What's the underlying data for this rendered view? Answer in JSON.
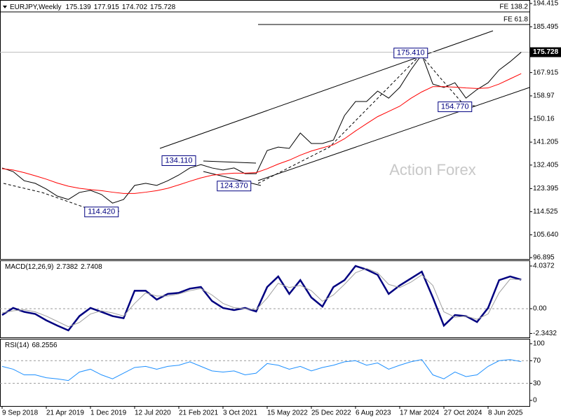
{
  "chart_data": [
    {
      "type": "line",
      "symbol": "EURJPY,Weekly",
      "header_values": [
        175.139,
        177.915,
        174.702,
        175.728
      ],
      "watermark": "Action Forex",
      "categories": [
        "9 Sep 2018",
        null,
        null,
        null,
        "21 Apr 2019",
        null,
        null,
        null,
        "1 Dec 2019",
        null,
        null,
        null,
        "12 Jul 2020",
        null,
        null,
        null,
        "21 Feb 2021",
        null,
        null,
        null,
        "3 Oct 2021",
        null,
        null,
        null,
        "15 May 2022",
        null,
        null,
        null,
        "25 Dec 2022",
        null,
        null,
        null,
        "6 Aug 2023",
        null,
        null,
        null,
        "17 Mar 2024",
        null,
        null,
        null,
        "27 Oct 2024",
        null,
        null,
        null,
        "8 Jun 2025",
        null,
        null,
        null
      ],
      "series": [
        {
          "name": "EURJPY",
          "color": "#000000",
          "values": [
            131.3,
            129.9,
            126.4,
            125.4,
            123.2,
            120.5,
            119.2,
            121.9,
            122.7,
            121.1,
            117.8,
            119.2,
            124.6,
            125.4,
            124.6,
            126.4,
            128.6,
            131.3,
            132.6,
            131.3,
            130.5,
            131.3,
            129.1,
            129.1,
            138.0,
            139.3,
            138.8,
            144.7,
            140.7,
            140.7,
            142.0,
            151.4,
            156.8,
            156.8,
            160.8,
            158.1,
            162.2,
            168.9,
            174.8,
            163.5,
            162.2,
            164.0,
            158.1,
            161.4,
            164.0,
            168.9,
            172.1,
            175.728
          ]
        },
        {
          "name": "MA",
          "color": "#ff0000",
          "values": [
            131,
            130.5,
            129.5,
            128.3,
            127,
            125.5,
            124.3,
            123.5,
            123,
            122.6,
            122,
            121.5,
            121.5,
            122,
            122.6,
            123.5,
            124.8,
            126.2,
            127.5,
            128.5,
            129,
            129.3,
            129.3,
            129.5,
            131,
            132.8,
            134.3,
            136.2,
            137.8,
            139,
            140.2,
            142.5,
            145.5,
            148.3,
            151,
            153,
            155,
            158,
            160.5,
            162.5,
            162.5,
            162.3,
            162,
            161.8,
            162,
            163.5,
            165.5,
            167.5
          ]
        }
      ],
      "annotations": [
        {
          "index": 37,
          "value": 175.41,
          "label": "175.410"
        },
        {
          "index": 41,
          "value": 154.77,
          "label": "154.770"
        },
        {
          "index": 16,
          "value": 134.11,
          "label": "134.110"
        },
        {
          "index": 21,
          "value": 124.37,
          "label": "124.370"
        },
        {
          "index": 9,
          "value": 114.42,
          "label": "114.420"
        }
      ],
      "fe_levels": [
        {
          "label": "FE 138.2",
          "value": 191.2
        },
        {
          "label": "FE 61.8",
          "value": 186.35
        }
      ],
      "ylim": [
        96.36,
        195.76
      ],
      "yticks": [
        194.415,
        185.495,
        167.915,
        158.97,
        150.16,
        141.205,
        132.405,
        123.395,
        {
          "value": 114.525,
          "label": "114.525"
        },
        {
          "value": 105.64,
          "label": "105.640"
        },
        96.895
      ]
    },
    {
      "type": "line",
      "title": "MACD(12,26,9)",
      "header_values": [
        2.7382,
        2.7408
      ],
      "series": [
        {
          "name": "MACD",
          "color": "#000080",
          "values": [
            -0.6,
            0.07,
            -0.3,
            -0.5,
            -1.1,
            -1.6,
            -2.05,
            -0.7,
            0.07,
            -0.3,
            -0.7,
            -0.9,
            1.7,
            1.7,
            0.86,
            1.4,
            1.5,
            1.9,
            2.05,
            0.73,
            0.07,
            -0.13,
            0.07,
            -0.26,
            2.05,
            3.05,
            1.4,
            2.7,
            1.06,
            0.2,
            2.05,
            2.7,
            4.04,
            3.7,
            3.2,
            1.4,
            2.2,
            2.85,
            3.5,
            1.06,
            -1.6,
            -0.6,
            -0.7,
            -1.26,
            0.07,
            2.7,
            3.05,
            2.7382
          ]
        },
        {
          "name": "Signal",
          "color": "#a0a0a0",
          "values": [
            -0.4,
            -0.2,
            -0.1,
            -0.3,
            -0.7,
            -1.2,
            -1.7,
            -1.3,
            -0.5,
            -0.2,
            -0.4,
            -0.7,
            0.5,
            1.5,
            1.2,
            1.2,
            1.4,
            1.7,
            1.9,
            1.3,
            0.5,
            0.1,
            0,
            -0.1,
            1.0,
            2.4,
            2.0,
            2.2,
            1.7,
            0.7,
            1.3,
            2.3,
            3.4,
            3.8,
            3.4,
            2.3,
            2.0,
            2.5,
            3.2,
            2.2,
            -0.3,
            -0.8,
            -0.7,
            -1.0,
            -0.5,
            1.5,
            2.8,
            2.7408
          ]
        }
      ],
      "ylim": [
        -2.714,
        4.567
      ],
      "yticks": [
        4.0372,
        {
          "value": 0,
          "label": "0.00"
        },
        -2.3432
      ],
      "grid_levels": [
        0
      ]
    },
    {
      "type": "line",
      "title": "RSI(14)",
      "header_values": [
        68.2556
      ],
      "series": [
        {
          "name": "RSI",
          "color": "#1e90ff",
          "values": [
            60,
            55,
            45,
            45,
            40,
            38,
            35,
            50,
            55,
            45,
            38,
            48,
            58,
            60,
            55,
            60,
            62,
            68,
            60,
            52,
            50,
            52,
            45,
            48,
            65,
            62,
            55,
            60,
            52,
            58,
            62,
            68,
            70,
            62,
            66,
            55,
            62,
            68,
            72,
            45,
            38,
            50,
            42,
            45,
            60,
            70,
            72,
            68.2556
          ]
        }
      ],
      "ylim": [
        -9.9,
        108.6
      ],
      "yticks": [
        100,
        70,
        30,
        0
      ],
      "grid_levels": [
        70,
        30
      ]
    }
  ]
}
